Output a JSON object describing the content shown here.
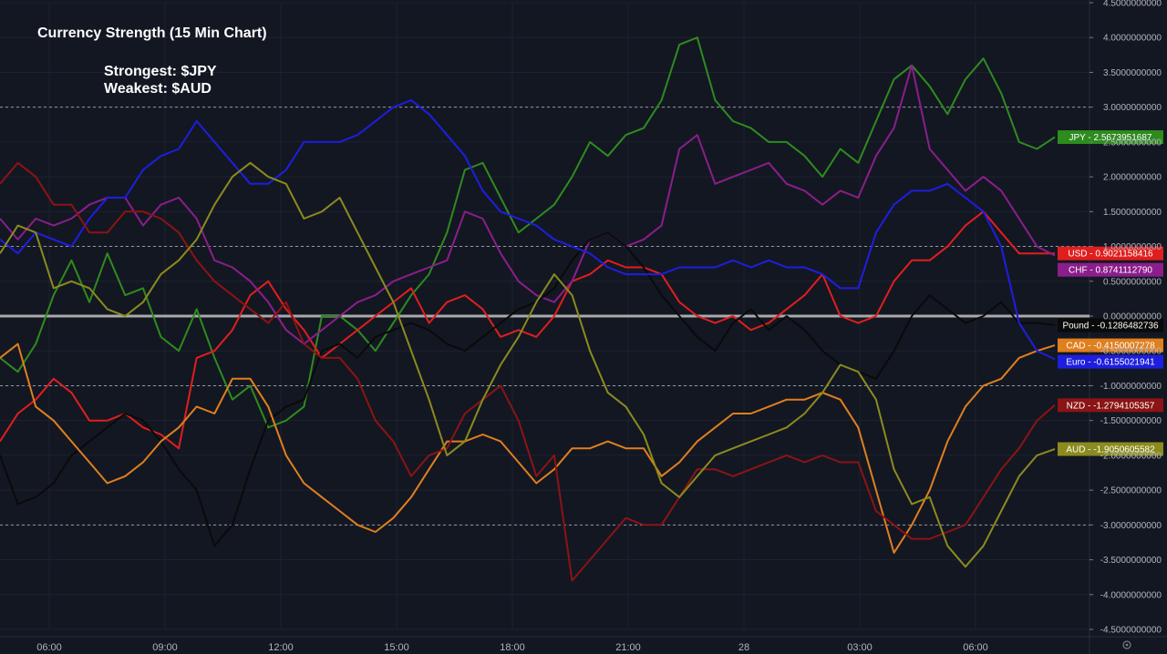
{
  "chart_data": {
    "type": "line",
    "title": "Currency Strength (15 Min Chart)",
    "subtitle_lines": [
      "Strongest: $JPY",
      "Weakest: $AUD"
    ],
    "ylim": [
      -4.5,
      4.5
    ],
    "yticks": [
      "4.5000000000",
      "4.0000000000",
      "3.5000000000",
      "3.0000000000",
      "2.5000000000",
      "2.0000000000",
      "1.5000000000",
      "1.0000000000",
      "0.5000000000",
      "0.0000000000",
      "-0.5000000000",
      "-1.0000000000",
      "-1.5000000000",
      "-2.0000000000",
      "-2.5000000000",
      "-3.0000000000",
      "-3.5000000000",
      "-4.0000000000",
      "-4.5000000000"
    ],
    "reference_lines": [
      3,
      1,
      -1,
      -3
    ],
    "zero_line": 0,
    "x_labels": [
      "06:00",
      "09:00",
      "12:00",
      "15:00",
      "18:00",
      "21:00",
      "28",
      "03:00",
      "06:00"
    ],
    "grid": true,
    "series": [
      {
        "name": "JPY",
        "color": "#2e8b1e",
        "label": "JPY - 2.5673951687",
        "values": [
          -0.6,
          -0.8,
          -0.4,
          0.3,
          0.8,
          0.2,
          0.9,
          0.3,
          0.4,
          -0.3,
          -0.5,
          0.1,
          -0.6,
          -1.2,
          -1.0,
          -1.6,
          -1.5,
          -1.3,
          0.0,
          0.0,
          -0.2,
          -0.5,
          -0.1,
          0.3,
          0.6,
          1.2,
          2.1,
          2.2,
          1.7,
          1.2,
          1.4,
          1.6,
          2.0,
          2.5,
          2.3,
          2.6,
          2.7,
          3.1,
          3.9,
          4.0,
          3.1,
          2.8,
          2.7,
          2.5,
          2.5,
          2.3,
          2.0,
          2.4,
          2.2,
          2.8,
          3.4,
          3.6,
          3.3,
          2.9,
          3.4,
          3.7,
          3.2,
          2.5,
          2.4,
          2.57
        ]
      },
      {
        "name": "USD",
        "color": "#e01e1e",
        "label": "USD - 0.9021158416",
        "values": [
          -1.8,
          -1.4,
          -1.2,
          -0.9,
          -1.1,
          -1.5,
          -1.5,
          -1.4,
          -1.6,
          -1.7,
          -1.9,
          -0.6,
          -0.5,
          -0.2,
          0.3,
          0.5,
          0.1,
          -0.2,
          -0.6,
          -0.4,
          -0.2,
          0.0,
          0.2,
          0.4,
          -0.1,
          0.2,
          0.3,
          0.1,
          -0.3,
          -0.2,
          -0.3,
          0.0,
          0.5,
          0.6,
          0.8,
          0.7,
          0.7,
          0.6,
          0.2,
          0.0,
          -0.1,
          0.0,
          -0.2,
          -0.1,
          0.1,
          0.3,
          0.6,
          0.0,
          -0.1,
          0.0,
          0.5,
          0.8,
          0.8,
          1.0,
          1.3,
          1.5,
          1.2,
          0.9,
          0.9,
          0.9
        ]
      },
      {
        "name": "CHF",
        "color": "#8b1e8b",
        "label": "CHF - 0.8741112790",
        "values": [
          1.4,
          1.1,
          1.4,
          1.3,
          1.4,
          1.6,
          1.7,
          1.7,
          1.3,
          1.6,
          1.7,
          1.4,
          0.8,
          0.7,
          0.5,
          0.2,
          -0.2,
          -0.4,
          -0.2,
          0.0,
          0.2,
          0.3,
          0.5,
          0.6,
          0.7,
          0.8,
          1.5,
          1.4,
          0.9,
          0.5,
          0.3,
          0.2,
          0.5,
          1.1,
          1.2,
          1.0,
          1.1,
          1.3,
          2.4,
          2.6,
          1.9,
          2.0,
          2.1,
          2.2,
          1.9,
          1.8,
          1.6,
          1.8,
          1.7,
          2.3,
          2.7,
          3.6,
          2.4,
          2.1,
          1.8,
          2.0,
          1.8,
          1.4,
          1.0,
          0.87
        ]
      },
      {
        "name": "Pound",
        "color": "#0a0a0a",
        "label": "Pound - -0.1286482736",
        "values": [
          -2.0,
          -2.7,
          -2.6,
          -2.4,
          -2.0,
          -1.8,
          -1.6,
          -1.4,
          -1.5,
          -1.8,
          -2.2,
          -2.5,
          -3.3,
          -3.0,
          -2.2,
          -1.5,
          -1.3,
          -1.2,
          -0.5,
          -0.4,
          -0.6,
          -0.3,
          -0.2,
          -0.1,
          -0.2,
          -0.4,
          -0.5,
          -0.3,
          -0.1,
          0.1,
          0.2,
          0.4,
          0.8,
          1.1,
          1.2,
          1.0,
          0.7,
          0.3,
          0.0,
          -0.3,
          -0.5,
          -0.1,
          0.1,
          -0.2,
          0.0,
          -0.2,
          -0.5,
          -0.7,
          -0.8,
          -0.9,
          -0.5,
          0.0,
          0.3,
          0.1,
          -0.1,
          0.0,
          0.2,
          -0.1,
          -0.1,
          -0.13
        ]
      },
      {
        "name": "CAD",
        "color": "#e07f1e",
        "label": "CAD - -0.4150007278",
        "values": [
          -0.6,
          -0.4,
          -1.3,
          -1.5,
          -1.8,
          -2.1,
          -2.4,
          -2.3,
          -2.1,
          -1.8,
          -1.6,
          -1.3,
          -1.4,
          -0.9,
          -0.9,
          -1.3,
          -2.0,
          -2.4,
          -2.6,
          -2.8,
          -3.0,
          -3.1,
          -2.9,
          -2.6,
          -2.2,
          -1.8,
          -1.8,
          -1.7,
          -1.8,
          -2.1,
          -2.4,
          -2.2,
          -1.9,
          -1.9,
          -1.8,
          -1.9,
          -1.9,
          -2.3,
          -2.1,
          -1.8,
          -1.6,
          -1.4,
          -1.4,
          -1.3,
          -1.2,
          -1.2,
          -1.1,
          -1.2,
          -1.6,
          -2.5,
          -3.4,
          -3.0,
          -2.5,
          -1.8,
          -1.3,
          -1.0,
          -0.9,
          -0.6,
          -0.5,
          -0.42
        ]
      },
      {
        "name": "Euro",
        "color": "#1e1ee0",
        "label": "Euro - -0.6155021941",
        "values": [
          1.1,
          0.9,
          1.2,
          1.1,
          1.0,
          1.4,
          1.7,
          1.7,
          2.1,
          2.3,
          2.4,
          2.8,
          2.5,
          2.2,
          1.9,
          1.9,
          2.1,
          2.5,
          2.5,
          2.5,
          2.6,
          2.8,
          3.0,
          3.1,
          2.9,
          2.6,
          2.3,
          1.8,
          1.5,
          1.4,
          1.3,
          1.1,
          1.0,
          0.9,
          0.7,
          0.6,
          0.6,
          0.6,
          0.7,
          0.7,
          0.7,
          0.8,
          0.7,
          0.8,
          0.7,
          0.7,
          0.6,
          0.4,
          0.4,
          1.2,
          1.6,
          1.8,
          1.8,
          1.9,
          1.7,
          1.5,
          1.0,
          -0.1,
          -0.5,
          -0.62
        ]
      },
      {
        "name": "NZD",
        "color": "#8b1414",
        "label": "NZD - -1.2794105357",
        "values": [
          1.9,
          2.2,
          2.0,
          1.6,
          1.6,
          1.2,
          1.2,
          1.5,
          1.5,
          1.4,
          1.2,
          0.8,
          0.5,
          0.3,
          0.1,
          -0.1,
          0.2,
          -0.4,
          -0.6,
          -0.6,
          -0.9,
          -1.5,
          -1.8,
          -2.3,
          -2.0,
          -1.9,
          -1.4,
          -1.2,
          -1.0,
          -1.5,
          -2.3,
          -2.0,
          -3.8,
          -3.5,
          -3.2,
          -2.9,
          -3.0,
          -3.0,
          -2.6,
          -2.2,
          -2.2,
          -2.3,
          -2.2,
          -2.1,
          -2.0,
          -2.1,
          -2.0,
          -2.1,
          -2.1,
          -2.8,
          -3.0,
          -3.2,
          -3.2,
          -3.1,
          -3.0,
          -2.6,
          -2.2,
          -1.9,
          -1.5,
          -1.28
        ]
      },
      {
        "name": "AUD",
        "color": "#8b8b1e",
        "label": "AUD - -1.9050605582",
        "values": [
          0.9,
          1.3,
          1.2,
          0.4,
          0.5,
          0.4,
          0.1,
          0.0,
          0.2,
          0.6,
          0.8,
          1.1,
          1.6,
          2.0,
          2.2,
          2.0,
          1.9,
          1.4,
          1.5,
          1.7,
          1.2,
          0.7,
          0.2,
          -0.5,
          -1.2,
          -2.0,
          -1.8,
          -1.2,
          -0.7,
          -0.3,
          0.2,
          0.6,
          0.3,
          -0.5,
          -1.1,
          -1.3,
          -1.7,
          -2.4,
          -2.6,
          -2.3,
          -2.0,
          -1.9,
          -1.8,
          -1.7,
          -1.6,
          -1.4,
          -1.1,
          -0.7,
          -0.8,
          -1.2,
          -2.2,
          -2.7,
          -2.6,
          -3.3,
          -3.6,
          -3.3,
          -2.8,
          -2.3,
          -2.0,
          -1.91
        ]
      }
    ]
  }
}
